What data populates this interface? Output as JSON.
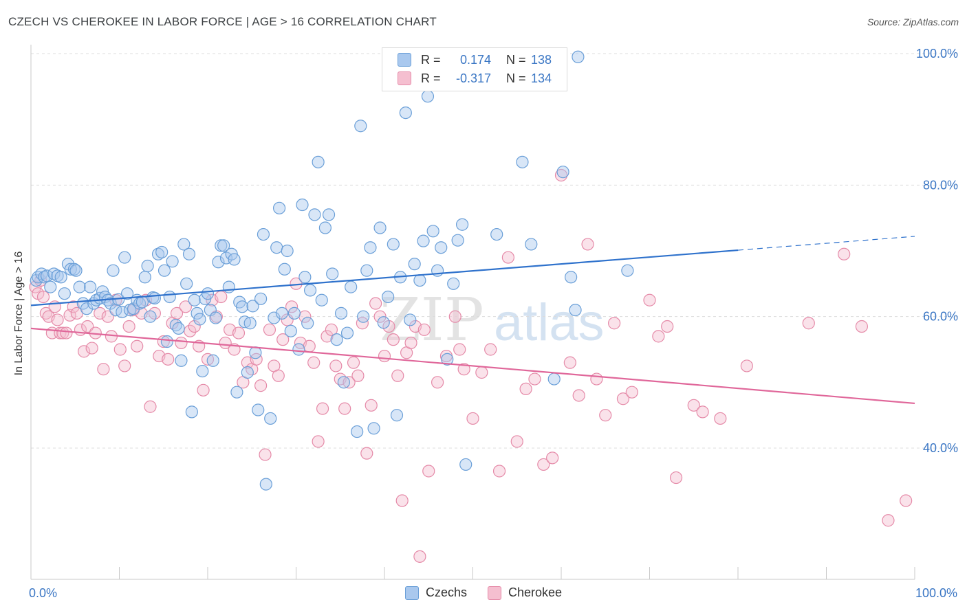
{
  "title": "CZECH VS CHEROKEE IN LABOR FORCE | AGE > 16 CORRELATION CHART",
  "source": "Source: ZipAtlas.com",
  "watermark": {
    "part1": "ZIP",
    "part2": "atlas"
  },
  "legend": {
    "rows": [
      {
        "r_label": "R =",
        "r_value": "0.174",
        "n_label": "N =",
        "n_value": "138"
      },
      {
        "r_label": "R =",
        "r_value": "-0.317",
        "n_label": "N =",
        "n_value": "134"
      }
    ]
  },
  "bottom_legend": [
    "Czechs",
    "Cherokee"
  ],
  "colors": {
    "czechs_fill": "#a9c8ee",
    "czechs_stroke": "#6a9fd8",
    "czechs_line": "#2f72cc",
    "cherokee_fill": "#f5bfd0",
    "cherokee_stroke": "#e58aa8",
    "cherokee_line": "#e0679a",
    "tick_text": "#3a76c4",
    "grid": "#dcdcdc"
  },
  "chart_data": {
    "type": "scatter",
    "title": "CZECH VS CHEROKEE IN LABOR FORCE | AGE > 16 CORRELATION CHART",
    "xlabel": "",
    "ylabel": "In Labor Force | Age > 16",
    "x_tick_labels": [
      "0.0%",
      "100.0%"
    ],
    "y_tick_labels": [
      "40.0%",
      "60.0%",
      "80.0%",
      "100.0%"
    ],
    "y_ticks": [
      40,
      60,
      80,
      100
    ],
    "xlim": [
      0,
      100
    ],
    "ylim": [
      22,
      101
    ],
    "grid": "horizontal dashed",
    "legend_placement": "top-center",
    "series": [
      {
        "name": "Czechs",
        "r": 0.174,
        "n": 138,
        "trend": {
          "x1": 0,
          "y1": 61.7,
          "x2": 80,
          "y2": 70.1,
          "dashed_to_x": 100,
          "dashed_to_y": 72.2
        },
        "points": [
          [
            0.6,
            65.5
          ],
          [
            0.8,
            66
          ],
          [
            1.2,
            66.5
          ],
          [
            1.5,
            66
          ],
          [
            1.8,
            66.2
          ],
          [
            2.2,
            64.5
          ],
          [
            2.6,
            66.5
          ],
          [
            3,
            66.2
          ],
          [
            3.4,
            66
          ],
          [
            3.8,
            63.5
          ],
          [
            4.2,
            68
          ],
          [
            4.5,
            67.2
          ],
          [
            4.9,
            67.2
          ],
          [
            5.1,
            67
          ],
          [
            5.5,
            64.5
          ],
          [
            5.9,
            62
          ],
          [
            6.3,
            61.2
          ],
          [
            6.7,
            64.5
          ],
          [
            7.1,
            62
          ],
          [
            7.4,
            62.5
          ],
          [
            7.8,
            62.8
          ],
          [
            8.1,
            63.8
          ],
          [
            8.4,
            63
          ],
          [
            8.7,
            62.5
          ],
          [
            9,
            62
          ],
          [
            9.3,
            67
          ],
          [
            9.6,
            61
          ],
          [
            9.9,
            62.6
          ],
          [
            10.3,
            60.7
          ],
          [
            10.6,
            69
          ],
          [
            10.9,
            63.5
          ],
          [
            11.2,
            61
          ],
          [
            11.6,
            61.2
          ],
          [
            12,
            62.5
          ],
          [
            12.3,
            62
          ],
          [
            12.6,
            62.2
          ],
          [
            12.9,
            66
          ],
          [
            13.2,
            67.7
          ],
          [
            13.5,
            60
          ],
          [
            13.8,
            62.9
          ],
          [
            14,
            62.8
          ],
          [
            14.4,
            69.5
          ],
          [
            14.8,
            69.8
          ],
          [
            15.1,
            67
          ],
          [
            15.4,
            56.2
          ],
          [
            15.7,
            63
          ],
          [
            16,
            68.4
          ],
          [
            16.4,
            58.7
          ],
          [
            16.7,
            58.2
          ],
          [
            17,
            53.3
          ],
          [
            17.3,
            71
          ],
          [
            17.6,
            65
          ],
          [
            17.9,
            69.5
          ],
          [
            18.2,
            45.5
          ],
          [
            18.5,
            62.5
          ],
          [
            18.8,
            60.5
          ],
          [
            19.1,
            59.6
          ],
          [
            19.4,
            51.7
          ],
          [
            19.7,
            62.7
          ],
          [
            20,
            63.5
          ],
          [
            20.3,
            61
          ],
          [
            20.6,
            53.3
          ],
          [
            20.9,
            59.8
          ],
          [
            21.2,
            68.3
          ],
          [
            21.5,
            70.8
          ],
          [
            21.8,
            70.8
          ],
          [
            22.1,
            68.9
          ],
          [
            22.4,
            64.5
          ],
          [
            22.7,
            69.5
          ],
          [
            23,
            68.7
          ],
          [
            23.3,
            48.5
          ],
          [
            23.6,
            62.2
          ],
          [
            23.9,
            61.5
          ],
          [
            24.2,
            59.2
          ],
          [
            24.5,
            51.5
          ],
          [
            24.8,
            59
          ],
          [
            25.1,
            61.6
          ],
          [
            25.4,
            54.5
          ],
          [
            25.7,
            45.8
          ],
          [
            26,
            62.7
          ],
          [
            26.3,
            72.5
          ],
          [
            26.6,
            34.5
          ],
          [
            27.1,
            44.5
          ],
          [
            27.5,
            59.8
          ],
          [
            27.8,
            70.5
          ],
          [
            28.1,
            76.5
          ],
          [
            28.4,
            60.5
          ],
          [
            28.7,
            67.2
          ],
          [
            29,
            70
          ],
          [
            29.4,
            57.8
          ],
          [
            29.8,
            60.5
          ],
          [
            30.3,
            55
          ],
          [
            30.7,
            77
          ],
          [
            31,
            66
          ],
          [
            31.3,
            59
          ],
          [
            31.6,
            64
          ],
          [
            32.1,
            75.5
          ],
          [
            32.5,
            83.5
          ],
          [
            32.9,
            62.5
          ],
          [
            33.3,
            73.5
          ],
          [
            33.7,
            75.5
          ],
          [
            34.1,
            66.5
          ],
          [
            34.6,
            56.5
          ],
          [
            35.1,
            60.5
          ],
          [
            35.4,
            50
          ],
          [
            35.8,
            57.5
          ],
          [
            36.2,
            64.5
          ],
          [
            36.9,
            42.5
          ],
          [
            37.3,
            89
          ],
          [
            37.6,
            60
          ],
          [
            38,
            67
          ],
          [
            38.4,
            70.5
          ],
          [
            38.8,
            43
          ],
          [
            39.5,
            73.5
          ],
          [
            39.9,
            59.1
          ],
          [
            40.4,
            63
          ],
          [
            41,
            71
          ],
          [
            41.4,
            45
          ],
          [
            41.8,
            66
          ],
          [
            42.4,
            91
          ],
          [
            42.9,
            59.5
          ],
          [
            43.4,
            68
          ],
          [
            44,
            65.5
          ],
          [
            44.4,
            71.5
          ],
          [
            44.9,
            93.5
          ],
          [
            45.5,
            73
          ],
          [
            46,
            67
          ],
          [
            46.4,
            70.5
          ],
          [
            47.1,
            53.5
          ],
          [
            47.8,
            65
          ],
          [
            48.3,
            71.6
          ],
          [
            48.8,
            74
          ],
          [
            49.2,
            37.5
          ],
          [
            52.7,
            72.5
          ],
          [
            55.6,
            83.5
          ],
          [
            56.6,
            71
          ],
          [
            59.2,
            50.5
          ],
          [
            60.2,
            82
          ],
          [
            61.1,
            66
          ],
          [
            61.6,
            61
          ],
          [
            61.9,
            99.5
          ],
          [
            67.5,
            67
          ]
        ]
      },
      {
        "name": "Cherokee",
        "r": -0.317,
        "n": 134,
        "trend": {
          "x1": 0,
          "y1": 58.2,
          "x2": 100,
          "y2": 46.8
        },
        "points": [
          [
            0.5,
            64.5
          ],
          [
            0.8,
            63.5
          ],
          [
            1.1,
            65.5
          ],
          [
            1.4,
            63
          ],
          [
            1.7,
            60.5
          ],
          [
            2,
            60
          ],
          [
            2.4,
            57.5
          ],
          [
            2.7,
            61.5
          ],
          [
            3,
            59.5
          ],
          [
            3.3,
            57.5
          ],
          [
            3.6,
            57.5
          ],
          [
            4,
            57.5
          ],
          [
            4.4,
            60.2
          ],
          [
            4.8,
            61.5
          ],
          [
            5.2,
            60.5
          ],
          [
            5.6,
            58
          ],
          [
            6,
            54.7
          ],
          [
            6.4,
            58.5
          ],
          [
            6.9,
            55.2
          ],
          [
            7.3,
            57.5
          ],
          [
            7.8,
            60.5
          ],
          [
            8.2,
            52
          ],
          [
            8.7,
            60
          ],
          [
            9.1,
            57
          ],
          [
            9.6,
            62.5
          ],
          [
            10.1,
            55
          ],
          [
            10.6,
            52.5
          ],
          [
            11.1,
            58.5
          ],
          [
            11.6,
            61
          ],
          [
            12,
            55.5
          ],
          [
            12.5,
            60.5
          ],
          [
            13,
            62.5
          ],
          [
            13.5,
            46.3
          ],
          [
            14,
            60.5
          ],
          [
            14.5,
            54
          ],
          [
            15,
            56.2
          ],
          [
            15.5,
            53.5
          ],
          [
            16,
            59
          ],
          [
            16.5,
            60.5
          ],
          [
            17,
            56
          ],
          [
            17.5,
            61.5
          ],
          [
            18,
            57.8
          ],
          [
            18.5,
            58.5
          ],
          [
            19,
            55.5
          ],
          [
            19.5,
            48.8
          ],
          [
            20,
            53.5
          ],
          [
            20.5,
            62.5
          ],
          [
            21,
            60
          ],
          [
            21.5,
            63
          ],
          [
            22,
            56
          ],
          [
            22.5,
            58
          ],
          [
            23,
            55
          ],
          [
            23.5,
            57.5
          ],
          [
            24,
            50
          ],
          [
            24.5,
            53
          ],
          [
            25,
            52
          ],
          [
            25.5,
            53.5
          ],
          [
            26,
            49.5
          ],
          [
            26.5,
            39
          ],
          [
            27,
            58
          ],
          [
            27.5,
            52.5
          ],
          [
            28,
            51
          ],
          [
            28.5,
            56.5
          ],
          [
            29,
            59.5
          ],
          [
            29.5,
            61.5
          ],
          [
            30,
            65
          ],
          [
            30.5,
            56
          ],
          [
            31,
            60
          ],
          [
            31.5,
            55.5
          ],
          [
            32,
            53
          ],
          [
            32.5,
            41
          ],
          [
            33,
            46
          ],
          [
            33.5,
            57
          ],
          [
            34,
            58
          ],
          [
            34.5,
            52.5
          ],
          [
            35,
            50.5
          ],
          [
            35.5,
            46
          ],
          [
            36,
            50
          ],
          [
            36.5,
            53
          ],
          [
            37,
            51
          ],
          [
            37.5,
            59
          ],
          [
            38,
            39.2
          ],
          [
            38.5,
            46.5
          ],
          [
            39,
            62
          ],
          [
            39.5,
            60
          ],
          [
            40,
            54
          ],
          [
            40.5,
            58.5
          ],
          [
            41,
            56.5
          ],
          [
            41.5,
            51
          ],
          [
            42,
            32
          ],
          [
            42.5,
            54.5
          ],
          [
            43,
            56
          ],
          [
            43.5,
            58.5
          ],
          [
            44,
            23.5
          ],
          [
            44.5,
            58
          ],
          [
            45,
            36.5
          ],
          [
            46,
            50
          ],
          [
            47,
            54
          ],
          [
            48,
            60
          ],
          [
            48.5,
            55
          ],
          [
            49,
            52
          ],
          [
            50,
            44.5
          ],
          [
            51,
            51.5
          ],
          [
            52,
            55
          ],
          [
            53,
            36.5
          ],
          [
            54,
            69
          ],
          [
            55,
            41
          ],
          [
            56,
            49
          ],
          [
            57,
            50.5
          ],
          [
            58,
            37.5
          ],
          [
            59,
            38.5
          ],
          [
            60,
            81.5
          ],
          [
            61,
            53
          ],
          [
            62,
            48
          ],
          [
            63,
            71
          ],
          [
            64,
            50.5
          ],
          [
            65,
            45
          ],
          [
            66,
            59
          ],
          [
            67,
            47.5
          ],
          [
            68,
            48.5
          ],
          [
            70,
            62.5
          ],
          [
            71,
            57
          ],
          [
            72,
            58.5
          ],
          [
            73,
            35.5
          ],
          [
            75,
            46.5
          ],
          [
            76,
            45.5
          ],
          [
            78,
            44.5
          ],
          [
            81,
            52.5
          ],
          [
            88,
            59
          ],
          [
            92,
            69.5
          ],
          [
            94,
            58.5
          ],
          [
            97,
            29
          ],
          [
            99,
            32
          ]
        ]
      }
    ]
  }
}
